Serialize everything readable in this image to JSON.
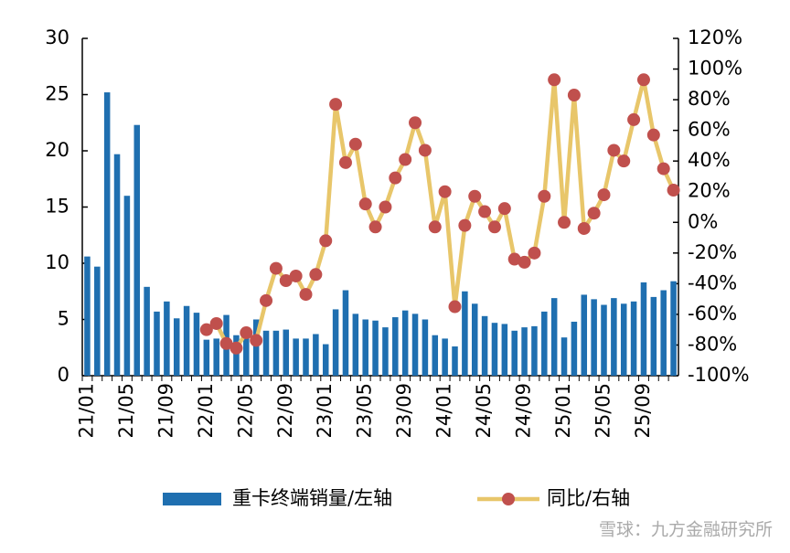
{
  "chart_data": {
    "type": "bar_line",
    "categories": [
      "21/01",
      null,
      null,
      null,
      "21/05",
      null,
      null,
      null,
      "21/09",
      null,
      null,
      null,
      "22/01",
      null,
      null,
      null,
      "22/05",
      null,
      null,
      null,
      "22/09",
      null,
      null,
      null,
      "23/01",
      null,
      null,
      null,
      "23/05",
      null,
      null,
      null,
      "23/09",
      null,
      null,
      null,
      "24/01",
      null,
      null,
      null,
      "24/05",
      null,
      null,
      null,
      "24/09",
      null,
      null,
      null,
      "25/01",
      null,
      null,
      null,
      "25/05",
      null,
      null,
      null,
      "25/09",
      null,
      null,
      null
    ],
    "series": [
      {
        "name": "重卡终端销量/左轴",
        "type": "bar",
        "color": "#1f6fb0",
        "values": [
          10.6,
          9.7,
          25.2,
          19.7,
          16.0,
          22.3,
          7.9,
          5.7,
          6.6,
          5.1,
          6.2,
          5.6,
          3.2,
          3.3,
          5.4,
          3.6,
          3.6,
          5.0,
          4.0,
          4.0,
          4.1,
          3.3,
          3.3,
          3.7,
          2.8,
          5.9,
          7.6,
          5.5,
          5.0,
          4.9,
          4.3,
          5.2,
          5.8,
          5.5,
          5.0,
          3.6,
          3.3,
          2.6,
          7.5,
          6.4,
          5.3,
          4.7,
          4.6,
          4.0,
          4.3,
          4.4,
          5.7,
          6.9,
          3.4,
          4.8,
          7.2,
          6.8,
          6.3,
          6.9,
          6.4,
          6.6,
          8.3,
          7.0,
          7.6,
          8.4
        ]
      },
      {
        "name": "同比/右轴",
        "type": "line",
        "axis": "y2",
        "color": "#e8c66a",
        "marker_color": "#c0504d",
        "values": [
          null,
          null,
          null,
          null,
          null,
          null,
          null,
          null,
          null,
          null,
          null,
          null,
          -70,
          -66,
          -79,
          -82,
          -72,
          -77,
          -51,
          -30,
          -38,
          -35,
          -47,
          -34,
          -12,
          77,
          39,
          51,
          12,
          -3,
          10,
          29,
          41,
          65,
          47,
          -3,
          20,
          -55,
          -2,
          17,
          7,
          -3,
          9,
          -24,
          -26,
          -20,
          17,
          93,
          0,
          83,
          -4,
          6,
          18,
          47,
          40,
          67,
          93,
          57,
          35,
          21
        ]
      }
    ],
    "ylim": [
      0,
      30
    ],
    "yticks": [
      0,
      5,
      10,
      15,
      20,
      25,
      30
    ],
    "y2lim": [
      -100,
      120
    ],
    "y2ticks": [
      {
        "value": -100,
        "label": "-100%"
      },
      {
        "value": -80,
        "label": "-80%"
      },
      {
        "value": -60,
        "label": "-60%"
      },
      {
        "value": -40,
        "label": "-40%"
      },
      {
        "value": -20,
        "label": "-20%"
      },
      {
        "value": 0,
        "label": "0%"
      },
      {
        "value": 20,
        "label": "20%"
      },
      {
        "value": 40,
        "label": "40%"
      },
      {
        "value": 60,
        "label": "60%"
      },
      {
        "value": 80,
        "label": "80%"
      },
      {
        "value": 100,
        "label": "100%"
      },
      {
        "value": 120,
        "label": "120%"
      }
    ],
    "legend": "bottom",
    "watermark": "雪球：九方金融研究所"
  }
}
